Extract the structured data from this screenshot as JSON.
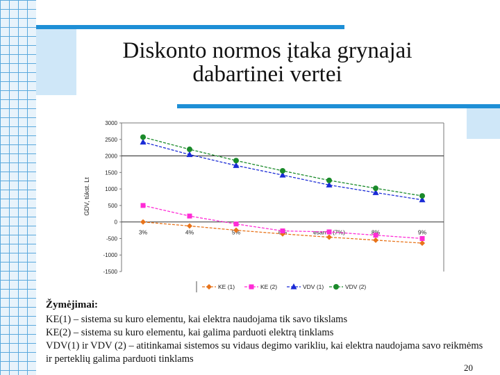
{
  "slide": {
    "title": "Diskonto normos įtaka grynajai dabartinei vertei",
    "notes_header": "Žymėjimai:",
    "notes": [
      "KE(1) – sistema su kuro elementu, kai elektra naudojama tik savo tikslams",
      "KE(2) – sistema su kuro elementu, kai galima parduoti elektrą tinklams",
      "VDV(1) ir VDV (2) – atitinkamai sistemos su vidaus degimo varikliu, kai elektra naudojama savo reikmėms ir perteklių galima parduoti tinklams"
    ],
    "page_number": "20"
  },
  "chart_data": {
    "type": "line",
    "ylabel": "GDV, tūkst. Lt",
    "ylim": [
      -1500,
      3000
    ],
    "yticks": [
      3000,
      2500,
      2000,
      1500,
      1000,
      500,
      0,
      -500,
      -1000,
      -1500
    ],
    "categories": [
      "3%",
      "4%",
      "5%",
      "6%",
      "esama (7%)",
      "8%",
      "9%"
    ],
    "series": [
      {
        "name": "KE (1)",
        "color": "#e8731a",
        "marker": "diamond",
        "values": [
          0,
          -120,
          -250,
          -360,
          -460,
          -550,
          -640
        ]
      },
      {
        "name": "KE (2)",
        "color": "#ff2bd6",
        "marker": "square",
        "values": [
          500,
          180,
          -60,
          -270,
          -300,
          -400,
          -500
        ]
      },
      {
        "name": "VDV (1)",
        "color": "#1a2bd6",
        "marker": "triangle",
        "values": [
          2420,
          2040,
          1710,
          1420,
          1120,
          890,
          670
        ]
      },
      {
        "name": "VDV (2)",
        "color": "#1a8a2a",
        "marker": "circle",
        "values": [
          2570,
          2200,
          1860,
          1550,
          1260,
          1020,
          790
        ]
      }
    ],
    "grid": false,
    "legend_position": "bottom"
  }
}
